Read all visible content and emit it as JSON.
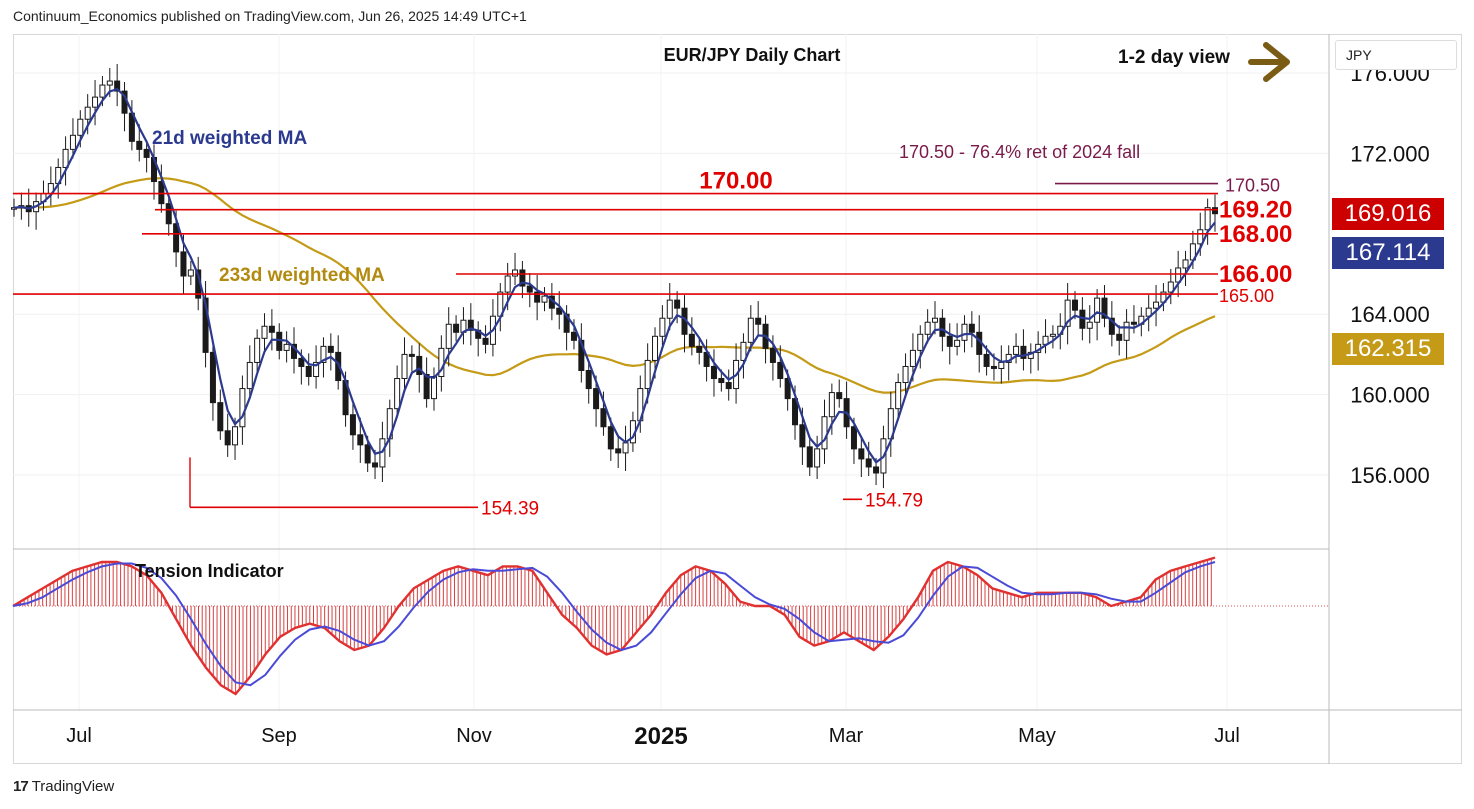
{
  "header": {
    "publisher": "Continuum_Economics published on TradingView.com, Jun 26, 2025 14:49 UTC+1"
  },
  "chart_title": "EUR/JPY Daily Chart",
  "view_label": "1-2 day view",
  "currency": "JPY",
  "footer": {
    "brand": "TradingView",
    "logo": "17"
  },
  "colors": {
    "up_candle": "#1a1a1a",
    "down_candle": "#1a1a1a",
    "level_line": "#e00000",
    "wma21": "#2b3a8f",
    "wma233": "#c49a16",
    "fib_line": "#7a1a4a",
    "arrow": "#7a5c14",
    "tag_last": "#cc0000",
    "tag_wma21": "#2b3a8f",
    "tag_wma233": "#c49a16"
  },
  "chart_data": {
    "type": "candlestick",
    "instrument": "EUR/JPY",
    "title": "EUR/JPY Daily Chart",
    "y_axis": {
      "ticks": [
        176.0,
        172.0,
        164.0,
        160.0,
        156.0
      ],
      "tick_labels": [
        "176.000",
        "172.000",
        "164.000",
        "160.000",
        "156.000"
      ],
      "range": [
        153.0,
        177.5
      ]
    },
    "x_axis": {
      "tick_labels": [
        "Jul",
        "Sep",
        "Nov",
        "2025",
        "Mar",
        "May",
        "Jul"
      ]
    },
    "price_tags": [
      {
        "label": "169.016",
        "value": 169.016,
        "kind": "last"
      },
      {
        "label": "167.114",
        "value": 167.114,
        "kind": "wma21"
      },
      {
        "label": "162.315",
        "value": 162.315,
        "kind": "wma233"
      }
    ],
    "levels": [
      {
        "value": 170.0,
        "label": "170.00",
        "kind": "resistance"
      },
      {
        "value": 169.2,
        "label": "169.20",
        "kind": "resistance"
      },
      {
        "value": 168.0,
        "label": "168.00",
        "kind": "support"
      },
      {
        "value": 166.0,
        "label": "166.00",
        "kind": "support"
      },
      {
        "value": 165.0,
        "label": "165.00",
        "kind": "support"
      },
      {
        "value": 170.5,
        "label": "170.50",
        "kind": "fib"
      }
    ],
    "lows": [
      {
        "value": 154.39,
        "label": "154.39"
      },
      {
        "value": 154.79,
        "label": "154.79"
      }
    ],
    "annotations": {
      "fib": "170.50 - 76.4% ret of 2024 fall",
      "wma21": "21d weighted MA",
      "wma233": "233d weighted MA",
      "indicator": "Tension Indicator"
    },
    "closes_approx": [
      169.3,
      169.4,
      169.1,
      169.6,
      170.0,
      170.5,
      171.3,
      172.2,
      172.9,
      173.7,
      174.3,
      174.8,
      175.4,
      175.6,
      175.1,
      174.0,
      172.6,
      172.2,
      171.8,
      170.6,
      169.5,
      168.5,
      167.1,
      165.9,
      166.2,
      164.8,
      162.1,
      159.6,
      158.2,
      157.5,
      158.4,
      160.3,
      161.6,
      162.8,
      163.4,
      163.1,
      162.2,
      162.5,
      161.8,
      161.4,
      160.9,
      161.6,
      162.4,
      162.1,
      160.7,
      159.0,
      158.0,
      157.5,
      156.6,
      156.4,
      157.8,
      159.3,
      160.8,
      162.0,
      161.9,
      161.0,
      159.8,
      160.9,
      162.3,
      163.5,
      163.1,
      163.7,
      163.2,
      162.8,
      162.5,
      163.9,
      165.1,
      165.9,
      166.2,
      165.4,
      165.1,
      164.6,
      164.9,
      164.3,
      164.0,
      163.1,
      162.7,
      161.2,
      160.3,
      159.3,
      158.4,
      157.3,
      157.1,
      157.6,
      158.7,
      160.3,
      161.7,
      162.9,
      163.8,
      164.7,
      164.3,
      163.0,
      162.4,
      162.1,
      161.4,
      160.8,
      160.6,
      160.3,
      161.7,
      162.6,
      163.8,
      163.5,
      162.3,
      161.6,
      160.8,
      159.8,
      158.5,
      157.4,
      156.4,
      157.3,
      158.9,
      160.1,
      159.8,
      158.4,
      157.3,
      156.8,
      156.4,
      156.1,
      157.8,
      159.3,
      160.6,
      161.4,
      162.2,
      163.0,
      163.6,
      163.8,
      162.9,
      162.4,
      162.7,
      163.5,
      163.1,
      162.0,
      161.4,
      161.3,
      161.6,
      162.0,
      162.4,
      161.8,
      162.1,
      162.5,
      162.9,
      163.0,
      163.4,
      164.7,
      164.2,
      163.3,
      163.6,
      164.8,
      163.8,
      163.0,
      162.7,
      163.6,
      163.5,
      163.9,
      164.3,
      164.6,
      165.1,
      165.6,
      166.3,
      166.7,
      167.5,
      168.2,
      169.3,
      169.0
    ],
    "tension_indicator_approx": [
      0.0,
      0.2,
      0.4,
      0.6,
      0.8,
      0.9,
      1.0,
      1.0,
      0.9,
      0.7,
      0.3,
      -0.3,
      -0.9,
      -1.4,
      -1.8,
      -2.0,
      -1.6,
      -1.1,
      -0.7,
      -0.5,
      -0.4,
      -0.5,
      -0.8,
      -1.0,
      -0.9,
      -0.5,
      0.0,
      0.4,
      0.6,
      0.8,
      0.9,
      0.8,
      0.7,
      0.9,
      0.9,
      0.8,
      0.3,
      -0.2,
      -0.5,
      -0.9,
      -1.1,
      -1.0,
      -0.6,
      -0.2,
      0.3,
      0.7,
      0.9,
      0.8,
      0.5,
      0.1,
      0.0,
      0.0,
      -0.2,
      -0.7,
      -0.9,
      -0.8,
      -0.6,
      -0.8,
      -1.0,
      -0.7,
      -0.3,
      0.2,
      0.8,
      1.0,
      0.9,
      0.7,
      0.4,
      0.3,
      0.2,
      0.3,
      0.3,
      0.3,
      0.3,
      0.2,
      0.0,
      0.1,
      0.2,
      0.6,
      0.8,
      0.9,
      1.0,
      1.1
    ]
  }
}
